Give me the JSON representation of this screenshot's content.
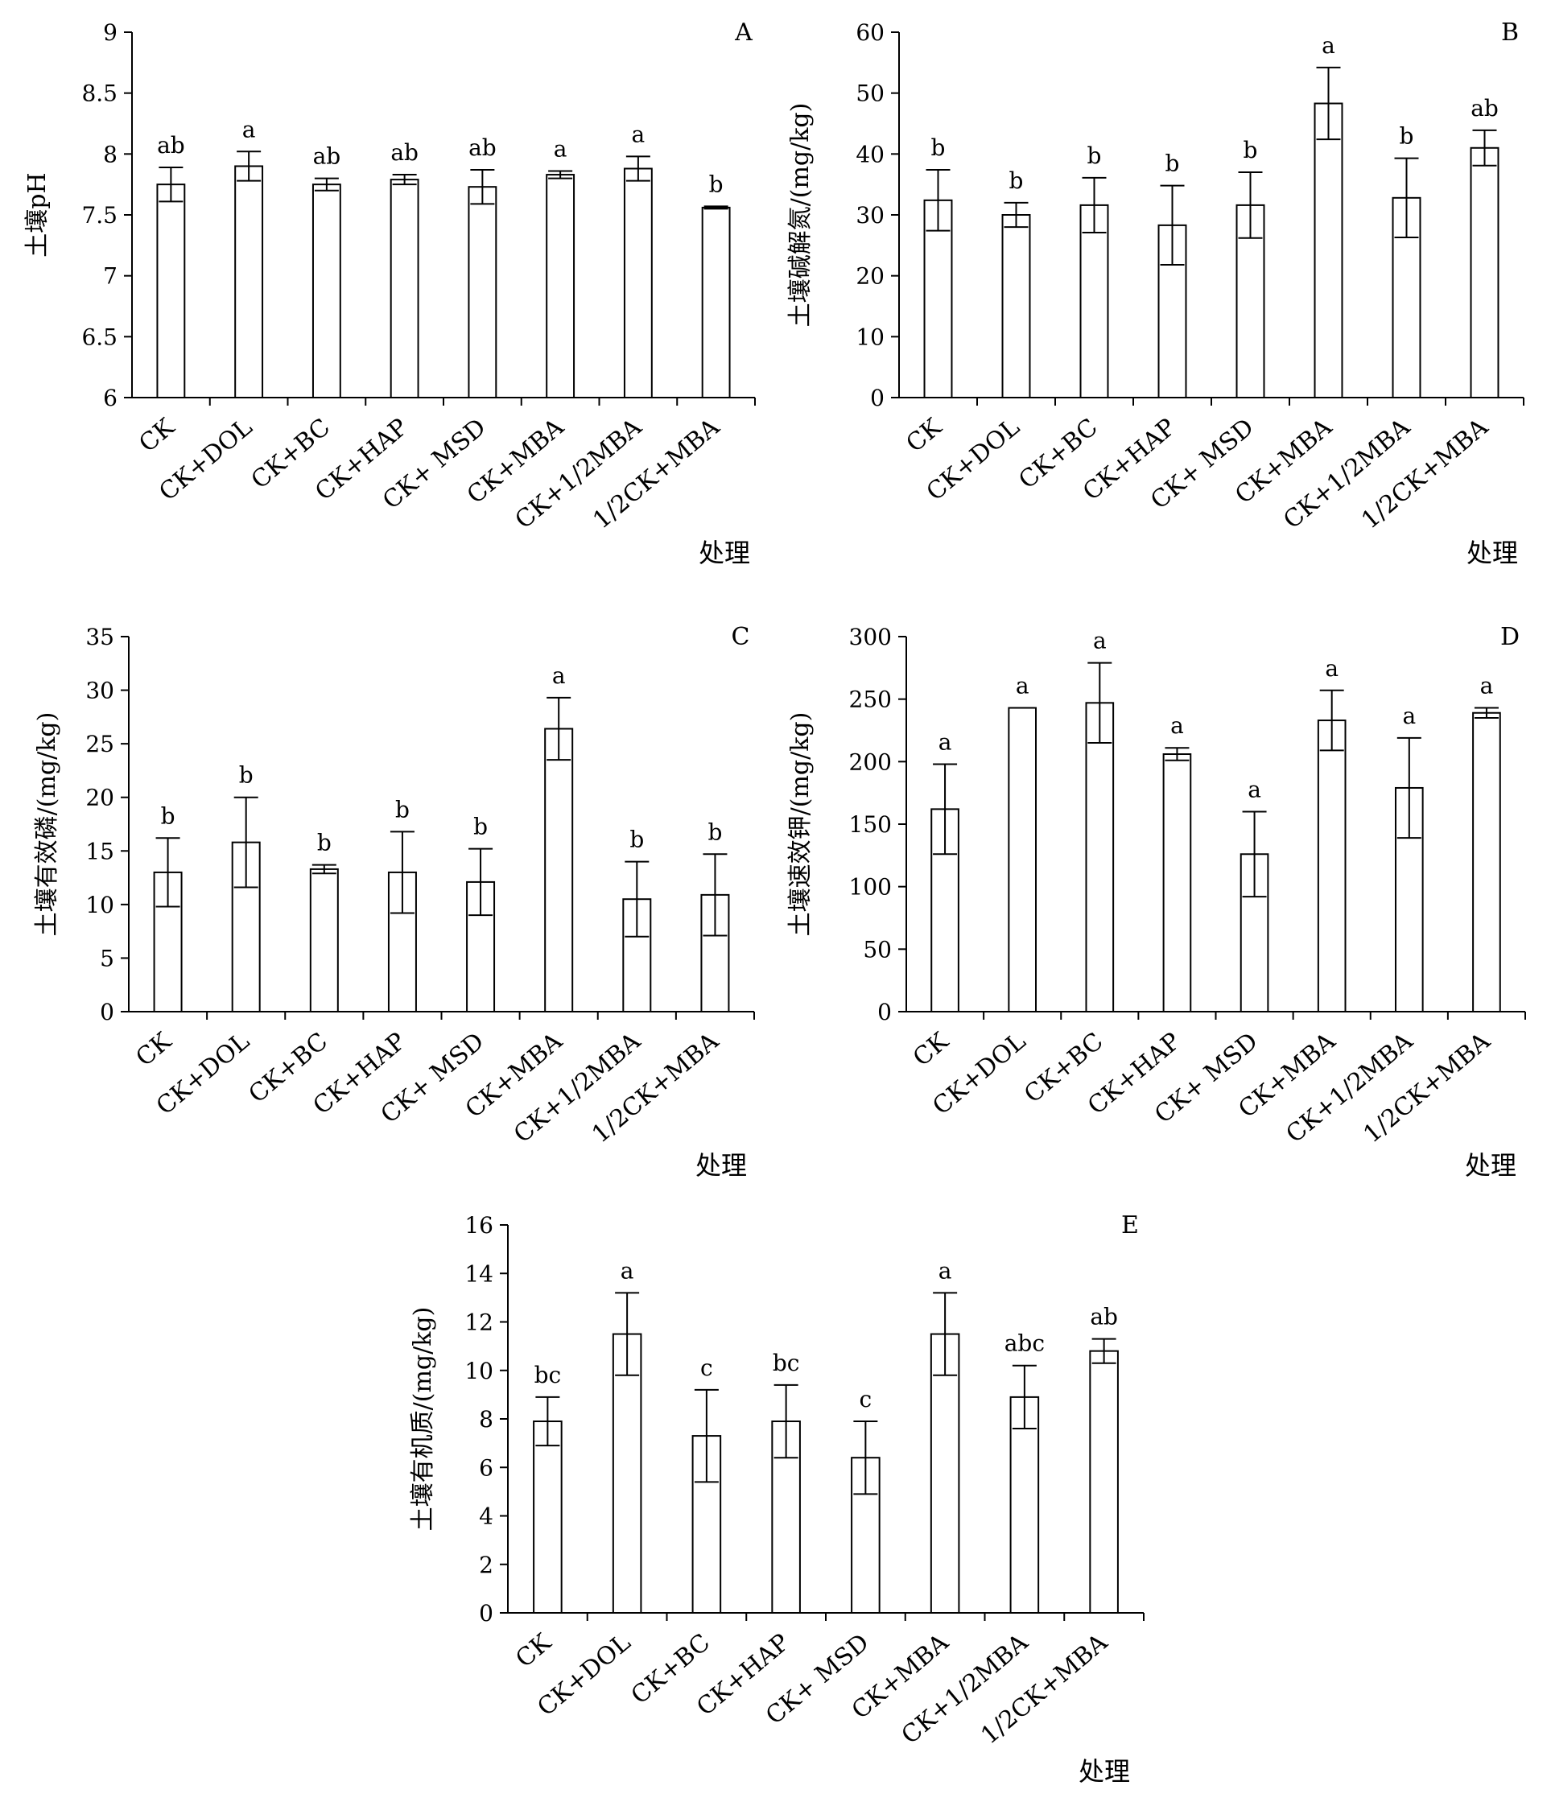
{
  "chart_data": [
    {
      "type": "bar",
      "panel_label": "A",
      "ylabel": "土壤pH",
      "xlabel": "处理",
      "categories": [
        "CK",
        "CK+DOL",
        "CK+BC",
        "CK+HAP",
        "CK+ MSD",
        "CK+MBA",
        "CK+1/2MBA",
        "1/2CK+MBA"
      ],
      "values": [
        7.75,
        7.9,
        7.75,
        7.79,
        7.73,
        7.83,
        7.88,
        7.56
      ],
      "errors": [
        0.14,
        0.12,
        0.05,
        0.04,
        0.14,
        0.03,
        0.1,
        0.01
      ],
      "letters": [
        "ab",
        "a",
        "ab",
        "ab",
        "ab",
        "a",
        "a",
        "b"
      ],
      "ylim": [
        6,
        9
      ],
      "yticks": [
        "6",
        "6.5",
        "7",
        "7.5",
        "8",
        "8.5",
        "9"
      ]
    },
    {
      "type": "bar",
      "panel_label": "B",
      "ylabel": "土壤碱解氮/(mg/kg)",
      "xlabel": "处理",
      "categories": [
        "CK",
        "CK+DOL",
        "CK+BC",
        "CK+HAP",
        "CK+ MSD",
        "CK+MBA",
        "CK+1/2MBA",
        "1/2CK+MBA"
      ],
      "values": [
        32.4,
        30.0,
        31.6,
        28.3,
        31.6,
        48.3,
        32.8,
        41.0
      ],
      "errors": [
        5.0,
        2.0,
        4.5,
        6.5,
        5.4,
        5.9,
        6.5,
        2.9
      ],
      "letters": [
        "b",
        "b",
        "b",
        "b",
        "b",
        "a",
        "b",
        "ab"
      ],
      "ylim": [
        0,
        60
      ],
      "yticks": [
        "0",
        "10",
        "20",
        "30",
        "40",
        "50",
        "60"
      ]
    },
    {
      "type": "bar",
      "panel_label": "C",
      "ylabel": "土壤有效磷/(mg/kg)",
      "xlabel": "处理",
      "categories": [
        "CK",
        "CK+DOL",
        "CK+BC",
        "CK+HAP",
        "CK+ MSD",
        "CK+MBA",
        "CK+1/2MBA",
        "1/2CK+MBA"
      ],
      "values": [
        13.0,
        15.8,
        13.3,
        13.0,
        12.1,
        26.4,
        10.5,
        10.9
      ],
      "errors": [
        3.2,
        4.2,
        0.4,
        3.8,
        3.1,
        2.9,
        3.5,
        3.8
      ],
      "letters": [
        "b",
        "b",
        "b",
        "b",
        "b",
        "a",
        "b",
        "b"
      ],
      "ylim": [
        0,
        35
      ],
      "yticks": [
        "0",
        "5",
        "10",
        "15",
        "20",
        "25",
        "30",
        "35"
      ]
    },
    {
      "type": "bar",
      "panel_label": "D",
      "ylabel": "土壤速效钾/(mg/kg)",
      "xlabel": "处理",
      "categories": [
        "CK",
        "CK+DOL",
        "CK+BC",
        "CK+HAP",
        "CK+ MSD",
        "CK+MBA",
        "CK+1/2MBA",
        "1/2CK+MBA"
      ],
      "values": [
        162,
        243,
        247,
        206,
        126,
        233,
        179,
        239
      ],
      "errors": [
        36,
        0,
        32,
        5,
        34,
        24,
        40,
        4
      ],
      "letters": [
        "a",
        "a",
        "a",
        "a",
        "a",
        "a",
        "a",
        "a"
      ],
      "ylim": [
        0,
        300
      ],
      "yticks": [
        "0",
        "50",
        "100",
        "150",
        "200",
        "250",
        "300"
      ]
    },
    {
      "type": "bar",
      "panel_label": "E",
      "ylabel": "土壤有机质/(mg/kg)",
      "xlabel": "处理",
      "categories": [
        "CK",
        "CK+DOL",
        "CK+BC",
        "CK+HAP",
        "CK+ MSD",
        "CK+MBA",
        "CK+1/2MBA",
        "1/2CK+MBA"
      ],
      "values": [
        7.9,
        11.5,
        7.3,
        7.9,
        6.4,
        11.5,
        8.9,
        10.8
      ],
      "errors": [
        1.0,
        1.7,
        1.9,
        1.5,
        1.5,
        1.7,
        1.3,
        0.5
      ],
      "letters": [
        "bc",
        "a",
        "c",
        "bc",
        "c",
        "a",
        "abc",
        "ab"
      ],
      "ylim": [
        0,
        16
      ],
      "yticks": [
        "0",
        "2",
        "4",
        "6",
        "8",
        "10",
        "12",
        "14",
        "16"
      ]
    }
  ]
}
